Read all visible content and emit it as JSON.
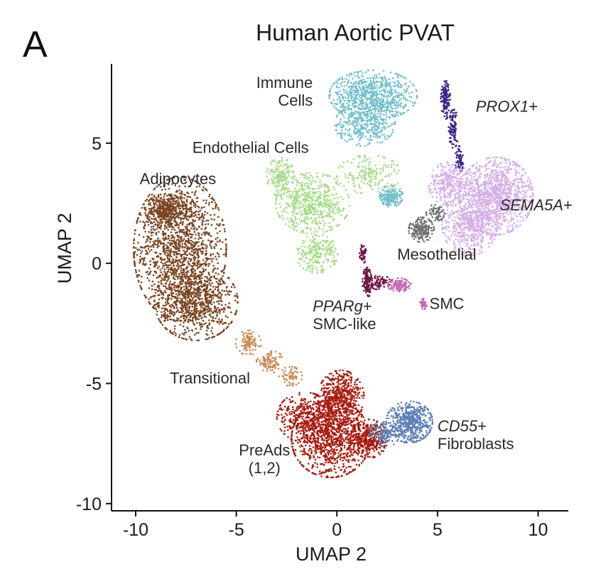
{
  "panel_letter": "A",
  "chart_data": {
    "type": "scatter",
    "title": "Human Aortic PVAT",
    "xlabel": "UMAP 2",
    "ylabel": "UMAP 2",
    "xlim": [
      -11.2,
      11.5
    ],
    "ylim": [
      -10.3,
      8.3
    ],
    "xticks": [
      -10,
      -5,
      0,
      5,
      10
    ],
    "yticks": [
      -10,
      -5,
      0,
      5
    ],
    "xtick_labels": [
      "-10",
      "-5",
      "0",
      "5",
      "10"
    ],
    "ytick_labels": [
      "-10",
      "-5",
      "0",
      "5"
    ],
    "grid": false,
    "legend": "none",
    "clusters": [
      {
        "name": "Adipocytes",
        "color": "#7a4420",
        "n": 2600,
        "blobs": [
          {
            "cx": -7.8,
            "cy": 0.6,
            "rx": 2.0,
            "ry": 2.6,
            "w": 0.55
          },
          {
            "cx": -7.0,
            "cy": -1.6,
            "rx": 1.8,
            "ry": 1.4,
            "w": 0.3
          },
          {
            "cx": -8.5,
            "cy": 2.2,
            "rx": 0.9,
            "ry": 0.6,
            "w": 0.15
          }
        ]
      },
      {
        "name": "Transitional",
        "color": "#c98a55",
        "n": 260,
        "blobs": [
          {
            "cx": -4.4,
            "cy": -3.3,
            "rx": 0.55,
            "ry": 0.45,
            "w": 0.4
          },
          {
            "cx": -3.3,
            "cy": -4.1,
            "rx": 0.6,
            "ry": 0.4,
            "w": 0.35
          },
          {
            "cx": -2.3,
            "cy": -4.7,
            "rx": 0.5,
            "ry": 0.35,
            "w": 0.25
          }
        ]
      },
      {
        "name": "PreAds (1,2)",
        "color": "#a61c10",
        "n": 2300,
        "blobs": [
          {
            "cx": -0.3,
            "cy": -7.3,
            "rx": 1.7,
            "ry": 1.4,
            "w": 0.45
          },
          {
            "cx": 0.2,
            "cy": -5.6,
            "rx": 1.0,
            "ry": 1.0,
            "w": 0.25
          },
          {
            "cx": -1.6,
            "cy": -6.4,
            "rx": 1.2,
            "ry": 0.9,
            "w": 0.15
          },
          {
            "cx": 1.6,
            "cy": -7.3,
            "rx": 0.8,
            "ry": 0.7,
            "w": 0.15
          }
        ]
      },
      {
        "name": "CD55+ Fibroblasts",
        "color": "#5b7fb5",
        "n": 650,
        "blobs": [
          {
            "cx": 3.6,
            "cy": -6.6,
            "rx": 1.0,
            "ry": 0.75,
            "w": 0.8
          },
          {
            "cx": 2.4,
            "cy": -7.1,
            "rx": 0.7,
            "ry": 0.45,
            "w": 0.2
          }
        ]
      },
      {
        "name": "Immune Cells",
        "color": "#72bfcc",
        "n": 1300,
        "blobs": [
          {
            "cx": 1.8,
            "cy": 7.0,
            "rx": 1.9,
            "ry": 0.9,
            "w": 0.55
          },
          {
            "cx": 1.4,
            "cy": 5.8,
            "rx": 1.3,
            "ry": 0.8,
            "w": 0.3
          },
          {
            "cx": 2.7,
            "cy": 2.8,
            "rx": 0.5,
            "ry": 0.4,
            "w": 0.15
          }
        ]
      },
      {
        "name": "Endothelial Cells",
        "color": "#a4dc85",
        "n": 1100,
        "blobs": [
          {
            "cx": -1.2,
            "cy": 2.5,
            "rx": 1.6,
            "ry": 1.1,
            "w": 0.5
          },
          {
            "cx": -2.8,
            "cy": 3.6,
            "rx": 0.6,
            "ry": 0.7,
            "w": 0.15
          },
          {
            "cx": -1.0,
            "cy": 0.4,
            "rx": 0.9,
            "ry": 0.7,
            "w": 0.2
          },
          {
            "cx": 1.6,
            "cy": 3.7,
            "rx": 1.4,
            "ry": 0.7,
            "w": 0.15
          }
        ]
      },
      {
        "name": "PROX1+",
        "color": "#3d2388",
        "n": 280,
        "blobs": [
          {
            "cx": 5.4,
            "cy": 6.8,
            "rx": 0.2,
            "ry": 0.7,
            "w": 0.45
          },
          {
            "cx": 5.8,
            "cy": 5.6,
            "rx": 0.22,
            "ry": 0.7,
            "w": 0.35
          },
          {
            "cx": 6.1,
            "cy": 4.3,
            "rx": 0.2,
            "ry": 0.5,
            "w": 0.2
          }
        ]
      },
      {
        "name": "SEMA5A+",
        "color": "#d4aee8",
        "n": 1900,
        "blobs": [
          {
            "cx": 7.9,
            "cy": 2.8,
            "rx": 1.6,
            "ry": 1.4,
            "w": 0.6
          },
          {
            "cx": 6.6,
            "cy": 1.6,
            "rx": 1.2,
            "ry": 1.1,
            "w": 0.25
          },
          {
            "cx": 5.6,
            "cy": 3.3,
            "rx": 0.9,
            "ry": 0.8,
            "w": 0.15
          }
        ]
      },
      {
        "name": "Mesothelial",
        "color": "#707070",
        "n": 260,
        "blobs": [
          {
            "cx": 4.2,
            "cy": 1.4,
            "rx": 0.55,
            "ry": 0.45,
            "w": 0.75
          },
          {
            "cx": 4.9,
            "cy": 2.1,
            "rx": 0.4,
            "ry": 0.3,
            "w": 0.25
          }
        ]
      },
      {
        "name": "PPARg+ SMC-like",
        "color": "#6e1848",
        "n": 260,
        "blobs": [
          {
            "cx": 1.5,
            "cy": -0.8,
            "rx": 0.2,
            "ry": 0.55,
            "w": 0.5
          },
          {
            "cx": 2.1,
            "cy": -0.8,
            "rx": 0.6,
            "ry": 0.25,
            "w": 0.3
          },
          {
            "cx": 1.3,
            "cy": 0.4,
            "rx": 0.15,
            "ry": 0.35,
            "w": 0.2
          }
        ]
      },
      {
        "name": "SMC",
        "color": "#c66bb4",
        "n": 170,
        "blobs": [
          {
            "cx": 3.1,
            "cy": -0.9,
            "rx": 0.5,
            "ry": 0.25,
            "w": 0.7
          },
          {
            "cx": 4.3,
            "cy": -1.7,
            "rx": 0.15,
            "ry": 0.2,
            "w": 0.3
          }
        ]
      }
    ],
    "labels": [
      {
        "key": "immune",
        "lines": [
          "Immune",
          "Cells"
        ],
        "x": -1.2,
        "y": 7.3,
        "anchor": "end",
        "italic_lines": []
      },
      {
        "key": "endothelial",
        "lines": [
          "Endothelial Cells"
        ],
        "x": -1.4,
        "y": 4.6,
        "anchor": "end",
        "italic_lines": []
      },
      {
        "key": "adipocytes",
        "lines": [
          "Adipocytes"
        ],
        "x": -9.8,
        "y": 3.3,
        "anchor": "start",
        "italic_lines": []
      },
      {
        "key": "prox1",
        "lines": [
          "PROX1+"
        ],
        "x": 6.9,
        "y": 6.3,
        "anchor": "start",
        "italic_lines": [
          0
        ],
        "italic_part": "PROX1",
        "plain_part": "+"
      },
      {
        "key": "sema5a",
        "lines": [
          "SEMA5A+"
        ],
        "x": 8.1,
        "y": 2.2,
        "anchor": "start",
        "italic_lines": [
          0
        ],
        "italic_part": "SEMA5A",
        "plain_part": "+"
      },
      {
        "key": "mesothelial",
        "lines": [
          "Mesothelial"
        ],
        "x": 3.0,
        "y": 0.15,
        "anchor": "start",
        "italic_lines": []
      },
      {
        "key": "smc",
        "lines": [
          "SMC"
        ],
        "x": 4.6,
        "y": -1.9,
        "anchor": "start",
        "italic_lines": []
      },
      {
        "key": "pparg",
        "lines": [
          "PPARg+",
          "SMC-like"
        ],
        "x": -1.2,
        "y": -2.0,
        "anchor": "start",
        "italic_lines": [
          0
        ],
        "italic_part": "PPARg",
        "plain_part": "+"
      },
      {
        "key": "transitional",
        "lines": [
          "Transitional"
        ],
        "x": -8.3,
        "y": -5.0,
        "anchor": "start",
        "italic_lines": []
      },
      {
        "key": "preads",
        "lines": [
          "PreAds",
          "(1,2)"
        ],
        "x": -3.6,
        "y": -8.0,
        "anchor": "middle",
        "italic_lines": []
      },
      {
        "key": "cd55",
        "lines": [
          "CD55+",
          "Fibroblasts"
        ],
        "x": 5.0,
        "y": -7.0,
        "anchor": "start",
        "italic_lines": [
          0
        ],
        "italic_part": "CD55",
        "plain_part": "+"
      }
    ]
  }
}
